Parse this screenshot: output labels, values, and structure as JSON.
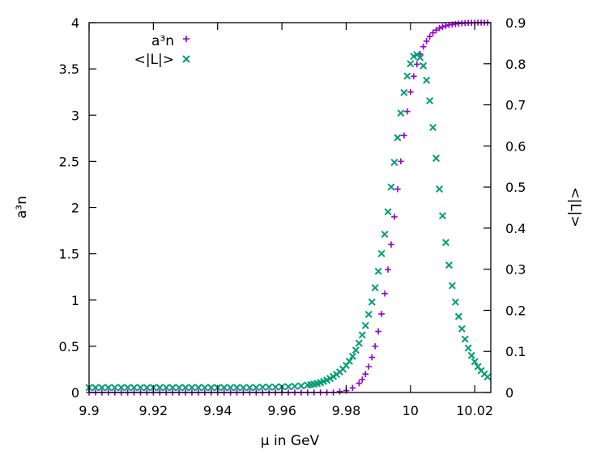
{
  "chart_data": {
    "type": "scatter",
    "xlabel": "μ in GeV",
    "ylabel": "a³n",
    "y2label": "<|L|>",
    "xlim": [
      9.9,
      10.025
    ],
    "ylim": [
      0,
      4
    ],
    "y2lim": [
      0,
      0.9
    ],
    "x_ticks": [
      "9.9",
      "9.92",
      "9.94",
      "9.96",
      "9.98",
      "10",
      "10.02"
    ],
    "x_tick_values": [
      9.9,
      9.92,
      9.94,
      9.96,
      9.98,
      10.0,
      10.02
    ],
    "y_ticks": [
      "0",
      "0.5",
      "1",
      "1.5",
      "2",
      "2.5",
      "3",
      "3.5",
      "4"
    ],
    "y_tick_values": [
      0,
      0.5,
      1,
      1.5,
      2,
      2.5,
      3,
      3.5,
      4
    ],
    "y2_ticks": [
      "0",
      "0.1",
      "0.2",
      "0.3",
      "0.4",
      "0.5",
      "0.6",
      "0.7",
      "0.8",
      "0.9"
    ],
    "y2_tick_values": [
      0,
      0.1,
      0.2,
      0.3,
      0.4,
      0.5,
      0.6,
      0.7,
      0.8,
      0.9
    ],
    "grid": false,
    "legend_position": "top-left",
    "series": [
      {
        "name": "a³n",
        "axis": "y",
        "marker": "plus",
        "color": "#9400d3",
        "x": [
          9.9,
          9.902,
          9.904,
          9.906,
          9.908,
          9.91,
          9.912,
          9.914,
          9.916,
          9.918,
          9.92,
          9.922,
          9.924,
          9.926,
          9.928,
          9.93,
          9.932,
          9.934,
          9.936,
          9.938,
          9.94,
          9.942,
          9.944,
          9.946,
          9.948,
          9.95,
          9.952,
          9.954,
          9.956,
          9.958,
          9.96,
          9.962,
          9.964,
          9.966,
          9.968,
          9.97,
          9.972,
          9.974,
          9.976,
          9.978,
          9.98,
          9.982,
          9.984,
          9.985,
          9.986,
          9.987,
          9.988,
          9.989,
          9.99,
          9.991,
          9.992,
          9.993,
          9.994,
          9.995,
          9.996,
          9.997,
          9.998,
          9.999,
          10.0,
          10.001,
          10.002,
          10.003,
          10.004,
          10.005,
          10.006,
          10.007,
          10.008,
          10.009,
          10.01,
          10.011,
          10.012,
          10.013,
          10.014,
          10.015,
          10.016,
          10.017,
          10.018,
          10.019,
          10.02,
          10.021,
          10.022,
          10.023,
          10.024
        ],
        "y": [
          0,
          0,
          0,
          0,
          0,
          0,
          0,
          0,
          0,
          0,
          0,
          0,
          0,
          0,
          0,
          0,
          0,
          0,
          0,
          0,
          0,
          0,
          0,
          0,
          0,
          0,
          0,
          0,
          0,
          0,
          0,
          0,
          0,
          0,
          0,
          0,
          0,
          0,
          0,
          0.01,
          0.02,
          0.05,
          0.1,
          0.14,
          0.2,
          0.28,
          0.38,
          0.5,
          0.66,
          0.85,
          1.07,
          1.33,
          1.6,
          1.9,
          2.2,
          2.5,
          2.78,
          3.04,
          3.25,
          3.42,
          3.55,
          3.66,
          3.74,
          3.8,
          3.85,
          3.89,
          3.92,
          3.94,
          3.955,
          3.965,
          3.975,
          3.98,
          3.985,
          3.99,
          3.993,
          3.995,
          3.997,
          3.998,
          3.999,
          4.0,
          4.0,
          4.0,
          4.0
        ]
      },
      {
        "name": "<|L|>",
        "axis": "y2",
        "marker": "cross",
        "color": "#009e73",
        "x": [
          9.9,
          9.902,
          9.904,
          9.906,
          9.908,
          9.91,
          9.912,
          9.914,
          9.916,
          9.918,
          9.92,
          9.922,
          9.924,
          9.926,
          9.928,
          9.93,
          9.932,
          9.934,
          9.936,
          9.938,
          9.94,
          9.942,
          9.944,
          9.946,
          9.948,
          9.95,
          9.952,
          9.954,
          9.956,
          9.958,
          9.96,
          9.962,
          9.964,
          9.966,
          9.968,
          9.969,
          9.97,
          9.971,
          9.972,
          9.973,
          9.974,
          9.975,
          9.976,
          9.977,
          9.978,
          9.979,
          9.98,
          9.981,
          9.982,
          9.983,
          9.984,
          9.985,
          9.986,
          9.987,
          9.988,
          9.989,
          9.99,
          9.991,
          9.992,
          9.993,
          9.994,
          9.995,
          9.996,
          9.997,
          9.998,
          9.999,
          10.0,
          10.001,
          10.002,
          10.003,
          10.004,
          10.005,
          10.006,
          10.007,
          10.008,
          10.009,
          10.01,
          10.011,
          10.012,
          10.013,
          10.014,
          10.015,
          10.016,
          10.017,
          10.018,
          10.019,
          10.02,
          10.021,
          10.022,
          10.023,
          10.024
        ],
        "y": [
          0.012,
          0.012,
          0.012,
          0.012,
          0.012,
          0.012,
          0.012,
          0.012,
          0.012,
          0.012,
          0.012,
          0.012,
          0.012,
          0.012,
          0.012,
          0.012,
          0.012,
          0.012,
          0.012,
          0.012,
          0.012,
          0.012,
          0.012,
          0.012,
          0.012,
          0.012,
          0.012,
          0.013,
          0.013,
          0.013,
          0.014,
          0.014,
          0.015,
          0.016,
          0.018,
          0.019,
          0.02,
          0.022,
          0.024,
          0.027,
          0.03,
          0.034,
          0.039,
          0.044,
          0.05,
          0.057,
          0.066,
          0.076,
          0.088,
          0.103,
          0.12,
          0.14,
          0.163,
          0.19,
          0.22,
          0.255,
          0.295,
          0.338,
          0.385,
          0.44,
          0.5,
          0.56,
          0.62,
          0.68,
          0.73,
          0.77,
          0.8,
          0.818,
          0.822,
          0.815,
          0.795,
          0.76,
          0.71,
          0.645,
          0.57,
          0.495,
          0.43,
          0.365,
          0.31,
          0.26,
          0.22,
          0.185,
          0.155,
          0.13,
          0.108,
          0.09,
          0.075,
          0.063,
          0.053,
          0.045,
          0.038
        ]
      }
    ]
  }
}
